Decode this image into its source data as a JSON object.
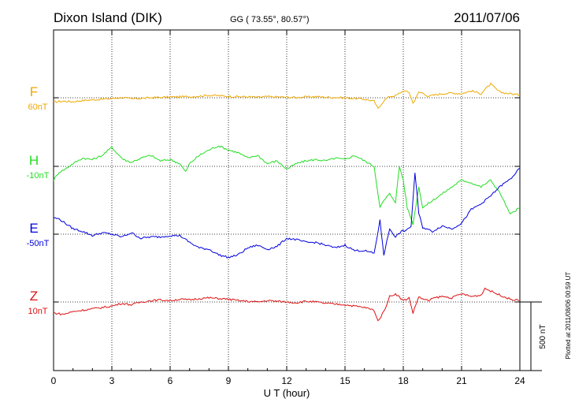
{
  "header": {
    "station": "Dixon Island (DIK)",
    "coords": "GG ( 73.55°,  80.57°)",
    "date": "2011/07/06"
  },
  "footer": {
    "plotted_note": "Plotted at 2011/08/06 00:59 UT"
  },
  "colors": {
    "F": "#f0a800",
    "H": "#22dd22",
    "E": "#0000dd",
    "Z": "#dd1111"
  },
  "chart_data": {
    "type": "line",
    "xlabel": "U T (hour)",
    "xlim": [
      0,
      24
    ],
    "xticks": [
      0,
      3,
      6,
      9,
      12,
      15,
      18,
      21,
      24
    ],
    "scale_bar": {
      "label": "500 nT",
      "value_nT": 500
    },
    "series": [
      {
        "name": "F",
        "baseline_label": "60nT",
        "color": "#f0a800",
        "x": [
          0,
          0.5,
          1,
          1.5,
          2,
          2.5,
          3,
          3.5,
          4,
          4.5,
          5,
          5.5,
          6,
          6.5,
          7,
          7.5,
          8,
          8.5,
          9,
          9.5,
          10,
          10.5,
          11,
          11.5,
          12,
          12.5,
          13,
          13.5,
          14,
          14.5,
          15,
          15.5,
          16,
          16.5,
          16.7,
          17,
          17.3,
          17.6,
          18,
          18.3,
          18.5,
          18.8,
          19,
          19.3,
          19.6,
          20,
          20.5,
          21,
          21.5,
          22,
          22.2,
          22.5,
          22.8,
          23,
          23.5,
          24
        ],
        "y": [
          -30,
          -25,
          -28,
          -20,
          -15,
          -10,
          -5,
          2,
          -8,
          -4,
          0,
          3,
          5,
          7,
          8,
          12,
          18,
          15,
          10,
          8,
          7,
          4,
          8,
          6,
          4,
          2,
          6,
          8,
          4,
          2,
          0,
          -5,
          -10,
          -25,
          -80,
          -20,
          10,
          15,
          50,
          40,
          -40,
          40,
          35,
          10,
          20,
          30,
          35,
          30,
          50,
          30,
          60,
          100,
          60,
          40,
          30,
          20
        ]
      },
      {
        "name": "H",
        "baseline_label": "-10nT",
        "color": "#22dd22",
        "x": [
          0,
          0.3,
          0.6,
          1,
          1.5,
          2,
          2.5,
          3,
          3.3,
          3.6,
          4,
          4.5,
          5,
          5.5,
          6,
          6.5,
          6.8,
          7,
          7.5,
          8,
          8.5,
          9,
          9.5,
          10,
          10.5,
          11,
          11.5,
          12,
          12.5,
          13,
          13.5,
          14,
          14.5,
          15,
          15.5,
          16,
          16.5,
          16.8,
          17,
          17.3,
          17.6,
          17.8,
          18,
          18.2,
          18.5,
          18.8,
          19,
          19.5,
          20,
          20.5,
          21,
          21.5,
          22,
          22.5,
          23,
          23.5,
          24
        ],
        "y": [
          -100,
          -40,
          -20,
          20,
          60,
          50,
          80,
          140,
          90,
          50,
          30,
          60,
          80,
          40,
          50,
          20,
          -40,
          20,
          80,
          120,
          150,
          120,
          100,
          60,
          80,
          20,
          40,
          -20,
          20,
          40,
          50,
          40,
          60,
          50,
          80,
          40,
          0,
          -300,
          -250,
          -200,
          -260,
          0,
          -100,
          -300,
          -420,
          -150,
          -300,
          -250,
          -200,
          -150,
          -100,
          -120,
          -150,
          -100,
          -200,
          -350,
          -300
        ]
      },
      {
        "name": "E",
        "baseline_label": "-50nT",
        "color": "#0000dd",
        "x": [
          0,
          0.3,
          0.6,
          1,
          1.5,
          2,
          2.5,
          3,
          3.5,
          4,
          4.5,
          5,
          5.5,
          6,
          6.5,
          7,
          7.5,
          8,
          8.5,
          9,
          9.5,
          10,
          10.5,
          11,
          11.5,
          12,
          12.5,
          13,
          13.5,
          14,
          14.5,
          15,
          15.5,
          16,
          16.5,
          16.8,
          17,
          17.3,
          17.6,
          17.9,
          18.2,
          18.4,
          18.6,
          18.8,
          19,
          19.5,
          20,
          20.5,
          21,
          21.5,
          22,
          22.5,
          23,
          23.5,
          24
        ],
        "y": [
          120,
          110,
          80,
          40,
          20,
          -10,
          10,
          0,
          -20,
          10,
          -30,
          -20,
          -20,
          -10,
          -10,
          -60,
          -100,
          -110,
          -150,
          -170,
          -150,
          -100,
          -80,
          -110,
          -90,
          -30,
          -40,
          -60,
          -60,
          -80,
          -100,
          -80,
          -120,
          -120,
          -140,
          100,
          -150,
          40,
          -20,
          20,
          30,
          60,
          450,
          150,
          50,
          20,
          60,
          40,
          80,
          180,
          220,
          280,
          350,
          400,
          480
        ]
      },
      {
        "name": "Z",
        "baseline_label": "10nT",
        "color": "#dd1111",
        "x": [
          0,
          0.5,
          1,
          1.5,
          2,
          2.5,
          3,
          3.5,
          4,
          4.5,
          5,
          5.5,
          6,
          6.5,
          7,
          7.5,
          8,
          8.5,
          9,
          9.5,
          10,
          10.5,
          11,
          11.5,
          12,
          12.5,
          13,
          13.5,
          14,
          14.5,
          15,
          15.5,
          16,
          16.5,
          16.7,
          17,
          17.3,
          17.6,
          18,
          18.3,
          18.5,
          18.8,
          19,
          19.3,
          19.6,
          20,
          20.5,
          21,
          21.5,
          22,
          22.2,
          22.5,
          22.8,
          23,
          23.5,
          24
        ],
        "y": [
          -80,
          -90,
          -70,
          -60,
          -50,
          -40,
          -30,
          -10,
          -20,
          0,
          10,
          15,
          10,
          20,
          15,
          25,
          30,
          25,
          20,
          10,
          5,
          0,
          10,
          5,
          0,
          -5,
          5,
          0,
          -10,
          -15,
          -20,
          -30,
          -40,
          -60,
          -140,
          -70,
          40,
          60,
          10,
          30,
          -80,
          40,
          20,
          10,
          30,
          40,
          30,
          60,
          40,
          50,
          100,
          80,
          60,
          50,
          20,
          10
        ]
      }
    ]
  }
}
